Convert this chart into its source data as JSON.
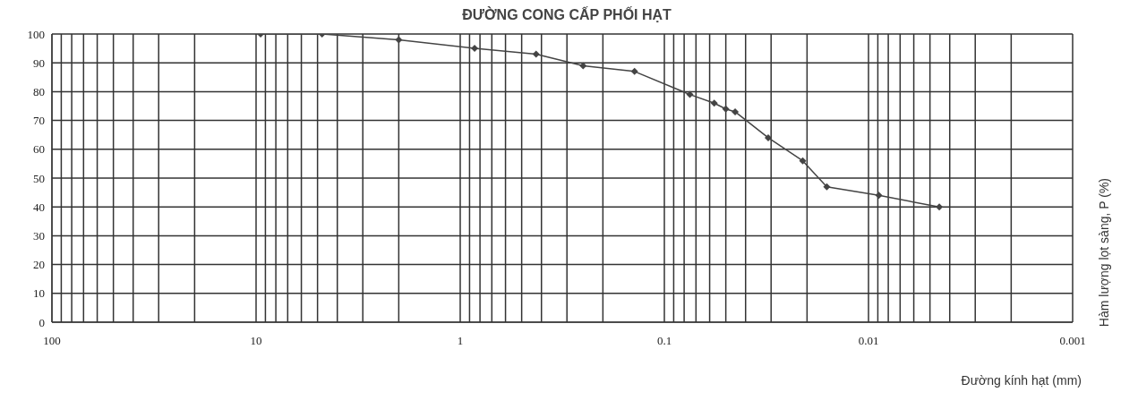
{
  "chart_data": {
    "type": "line",
    "title": "ĐƯỜNG CONG CẤP PHỐI HẠT",
    "xlabel": "Đường kính hạt (mm)",
    "ylabel": "Hàm lượng lọt sàng, P (%)",
    "x": [
      9.5,
      4.75,
      2,
      0.85,
      0.425,
      0.25,
      0.14,
      0.075,
      0.057,
      0.05,
      0.045,
      0.031,
      0.021,
      0.016,
      0.0089,
      0.0045
    ],
    "series": [
      {
        "color": "#444444",
        "values": [
          100,
          100,
          98,
          95,
          93,
          89,
          87,
          79,
          76,
          74,
          73,
          64,
          56,
          47,
          44,
          40
        ]
      }
    ],
    "log": "x",
    "xlim": [
      100,
      0.001
    ],
    "xticks": [
      100,
      {
        "value": 90,
        "label": null
      },
      {
        "value": 80,
        "label": null
      },
      {
        "value": 70,
        "label": null
      },
      {
        "value": 60,
        "label": null
      },
      {
        "value": 50,
        "label": null
      },
      {
        "value": 40,
        "label": null
      },
      {
        "value": 30,
        "label": null
      },
      {
        "value": 20,
        "label": null
      },
      10,
      {
        "value": 9,
        "label": null
      },
      {
        "value": 8,
        "label": null
      },
      {
        "value": 7,
        "label": null
      },
      {
        "value": 6,
        "label": null
      },
      {
        "value": 5,
        "label": null
      },
      {
        "value": 4,
        "label": null
      },
      {
        "value": 3,
        "label": null
      },
      {
        "value": 2,
        "label": null
      },
      1,
      {
        "value": 0.9,
        "label": null
      },
      {
        "value": 0.8,
        "label": null
      },
      {
        "value": 0.7,
        "label": null
      },
      {
        "value": 0.6,
        "label": null
      },
      {
        "value": 0.5,
        "label": null
      },
      {
        "value": 0.4,
        "label": null
      },
      {
        "value": 0.3,
        "label": null
      },
      {
        "value": 0.2,
        "label": null
      },
      0.1,
      {
        "value": 0.09,
        "label": null
      },
      {
        "value": 0.08,
        "label": null
      },
      {
        "value": 0.07,
        "label": null
      },
      {
        "value": 0.06,
        "label": null
      },
      {
        "value": 0.05,
        "label": null
      },
      {
        "value": 0.04,
        "label": null
      },
      {
        "value": 0.03,
        "label": null
      },
      {
        "value": 0.02,
        "label": null
      },
      0.01,
      {
        "value": 0.009,
        "label": null
      },
      {
        "value": 0.008,
        "label": null
      },
      {
        "value": 0.007,
        "label": null
      },
      {
        "value": 0.006,
        "label": null
      },
      {
        "value": 0.005,
        "label": null
      },
      {
        "value": 0.004,
        "label": null
      },
      {
        "value": 0.003,
        "label": null
      },
      {
        "value": 0.002,
        "label": null
      },
      0.001
    ],
    "ylim": [
      0,
      100
    ],
    "yticks": [
      0,
      10,
      20,
      30,
      40,
      50,
      60,
      70,
      80,
      90,
      100
    ],
    "grid": true,
    "marker": "diamond",
    "line_style": "solid"
  }
}
